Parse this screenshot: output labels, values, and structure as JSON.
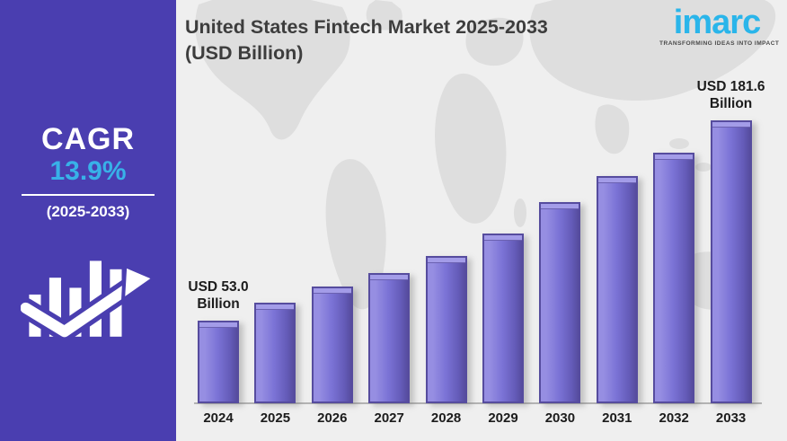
{
  "page": {
    "bg_color": "#efefef"
  },
  "sidebar": {
    "bg_color": "#4a3eb0",
    "cagr_label": "CAGR",
    "cagr_value": "13.9%",
    "cagr_value_color": "#38b1e8",
    "period": "(2025-2033)"
  },
  "header": {
    "title_line1": "United States Fintech Market 2025-2033",
    "title_line2": "(USD Billion)"
  },
  "logo": {
    "brand": "imarc",
    "brand_color": "#2ab5ea",
    "tagline": "TRANSFORMING IDEAS INTO IMPACT"
  },
  "chart_data": {
    "type": "bar",
    "title": "United States Fintech Market 2025-2033 (USD Billion)",
    "unit": "USD Billion",
    "categories": [
      "2024",
      "2025",
      "2026",
      "2027",
      "2028",
      "2029",
      "2030",
      "2031",
      "2032",
      "2033"
    ],
    "values": [
      53.0,
      64.5,
      75.0,
      83.5,
      94.5,
      109.0,
      129.0,
      146.0,
      160.5,
      181.6
    ],
    "labeled_points": [
      {
        "category": "2024",
        "lines": [
          "USD 53.0",
          "Billion"
        ]
      },
      {
        "category": "2033",
        "lines": [
          "USD 181.6",
          "Billion"
        ]
      }
    ],
    "ylim": [
      0,
      200
    ],
    "grid": false,
    "legend": false,
    "xlabel": "",
    "ylabel": "",
    "colors": {
      "bar_body": "#7b73d6",
      "bar_highlight": "#968ee2",
      "bar_shade": "#645bb8",
      "bar_edge": "#564c9e",
      "bar_top_bevel": "#a39ce8",
      "axis_line": "#b3b3b3",
      "label_text": "#1c1c1c",
      "map_fill": "#dedede"
    }
  }
}
